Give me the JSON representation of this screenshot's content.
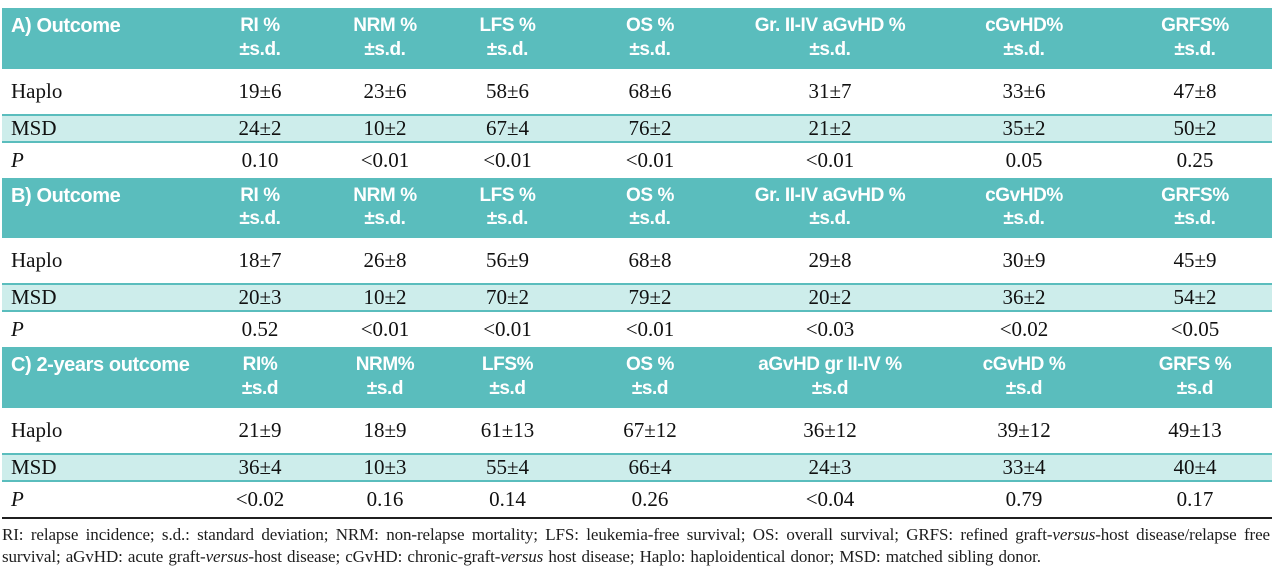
{
  "colors": {
    "header_teal": "#5abdbd",
    "highlight_row_teal": "#cdedeb",
    "separator_teal": "#5abdbd",
    "table_bottom_line": "#1f1f1f",
    "header_text": "#ffffff",
    "body_text": "#111111"
  },
  "table": {
    "sections": [
      {
        "title": "A) Outcome",
        "columns": [
          {
            "label": "RI %",
            "sub": "±s.d."
          },
          {
            "label": "NRM %",
            "sub": "±s.d."
          },
          {
            "label": "LFS %",
            "sub": "±s.d."
          },
          {
            "label": "OS %",
            "sub": "±s.d."
          },
          {
            "label": "Gr. II-IV aGvHD %",
            "sub": "±s.d."
          },
          {
            "label": "cGvHD%",
            "sub": "±s.d."
          },
          {
            "label": "GRFS%",
            "sub": "±s.d."
          }
        ],
        "rows": [
          {
            "label": "Haplo",
            "values": [
              "19±6",
              "23±6",
              "58±6",
              "68±6",
              "31±7",
              "33±6",
              "47±8"
            ]
          },
          {
            "label": "MSD",
            "values": [
              "24±2",
              "10±2",
              "67±4",
              "76±2",
              "21±2",
              "35±2",
              "50±2"
            ]
          },
          {
            "label": "P",
            "values": [
              "0.10",
              "<0.01",
              "<0.01",
              "<0.01",
              "<0.01",
              "0.05",
              "0.25"
            ]
          }
        ]
      },
      {
        "title": "B) Outcome",
        "columns": [
          {
            "label": "RI %",
            "sub": "±s.d."
          },
          {
            "label": "NRM %",
            "sub": "±s.d."
          },
          {
            "label": "LFS %",
            "sub": "±s.d."
          },
          {
            "label": "OS %",
            "sub": "±s.d."
          },
          {
            "label": "Gr. II-IV aGvHD %",
            "sub": "±s.d."
          },
          {
            "label": "cGvHD%",
            "sub": "±s.d."
          },
          {
            "label": "GRFS%",
            "sub": "±s.d."
          }
        ],
        "rows": [
          {
            "label": "Haplo",
            "values": [
              "18±7",
              "26±8",
              "56±9",
              "68±8",
              "29±8",
              "30±9",
              "45±9"
            ]
          },
          {
            "label": "MSD",
            "values": [
              "20±3",
              "10±2",
              "70±2",
              "79±2",
              "20±2",
              "36±2",
              "54±2"
            ]
          },
          {
            "label": "P",
            "values": [
              "0.52",
              "<0.01",
              "<0.01",
              "<0.01",
              "<0.03",
              "<0.02",
              "<0.05"
            ]
          }
        ]
      },
      {
        "title": "C) 2-years outcome",
        "columns": [
          {
            "label": "RI%",
            "sub": "±s.d"
          },
          {
            "label": "NRM%",
            "sub": "±s.d"
          },
          {
            "label": "LFS%",
            "sub": "±s.d"
          },
          {
            "label": "OS %",
            "sub": "±s.d"
          },
          {
            "label": "aGvHD gr II-IV %",
            "sub": "±s.d"
          },
          {
            "label": "cGvHD %",
            "sub": "±s.d"
          },
          {
            "label": "GRFS %",
            "sub": "±s.d"
          }
        ],
        "rows": [
          {
            "label": "Haplo",
            "values": [
              "21±9",
              "18±9",
              "61±13",
              "67±12",
              "36±12",
              "39±12",
              "49±13"
            ]
          },
          {
            "label": "MSD",
            "values": [
              "36±4",
              "10±3",
              "55±4",
              "66±4",
              "24±3",
              "33±4",
              "40±4"
            ]
          },
          {
            "label": "P",
            "values": [
              "<0.02",
              "0.16",
              "0.14",
              "0.26",
              "<0.04",
              "0.79",
              "0.17"
            ]
          }
        ]
      }
    ]
  },
  "footnote": {
    "part1": "RI: relapse incidence; s.d.: standard deviation; NRM: non-relapse mortality; LFS: leukemia-free survival; OS: overall survival; GRFS: refined graft-",
    "versus1": "versus",
    "part2": "-host disease/relapse free survival; aGvHD: acute graft-",
    "versus2": "versus",
    "part3": "-host disease; cGvHD: chronic-graft-",
    "versus3": "versus",
    "part4": " host disease; Haplo: haploidentical donor; MSD: matched sibling donor."
  }
}
